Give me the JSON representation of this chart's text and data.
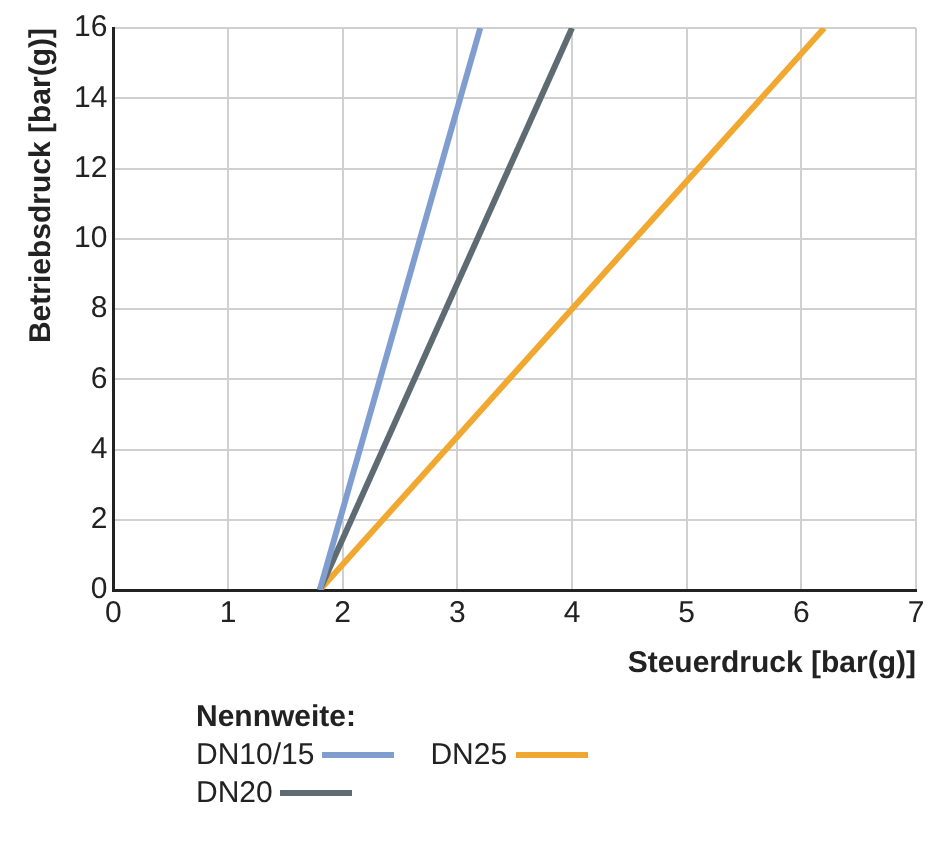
{
  "chart_data": {
    "type": "line",
    "xlabel": "Steuerdruck [bar(g)]",
    "ylabel": "Betriebsdruck [bar(g)]",
    "legend_title": "Nennweite:",
    "xlim": [
      0,
      7
    ],
    "xticks": [
      0,
      1,
      2,
      3,
      4,
      5,
      6,
      7
    ],
    "ylim": [
      0,
      16
    ],
    "yticks": [
      0,
      2,
      4,
      6,
      8,
      10,
      12,
      14,
      16
    ],
    "grid": true,
    "legend": "bottom",
    "marker": "none",
    "line_style": "solid",
    "series": [
      {
        "name": "DN10/15",
        "color": "#7f9ecf",
        "x": [
          1.8,
          3.2
        ],
        "values": [
          0,
          16
        ]
      },
      {
        "name": "DN20",
        "color": "#5f6b72",
        "x": [
          1.8,
          4.0
        ],
        "values": [
          0,
          16
        ]
      },
      {
        "name": "DN25",
        "color": "#f0a830",
        "x": [
          1.8,
          6.2
        ],
        "values": [
          0,
          16
        ]
      }
    ]
  }
}
